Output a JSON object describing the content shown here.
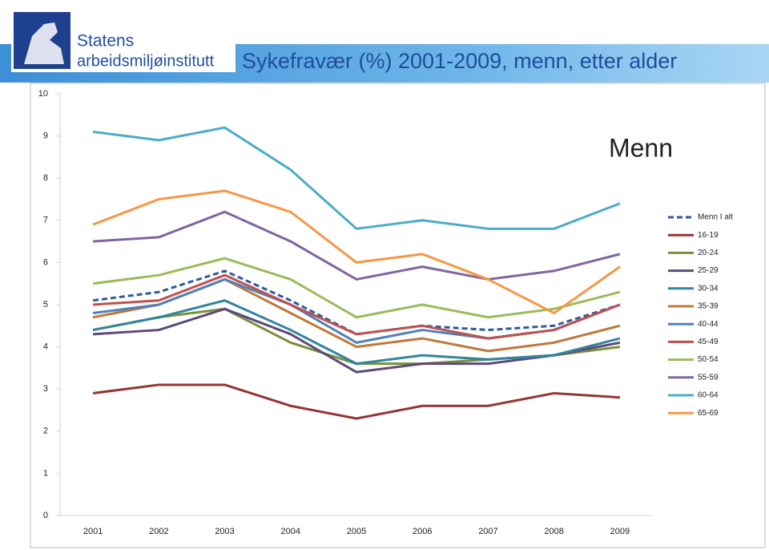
{
  "header": {
    "logo_lines": [
      "Statens",
      "arbeidsmiljøinstitutt"
    ]
  },
  "chart_data": {
    "type": "line",
    "title": "Sykefravær (%) 2001-2009, menn, etter alder",
    "annotation": "Menn",
    "categories": [
      "2001",
      "2002",
      "2003",
      "2004",
      "2005",
      "2006",
      "2007",
      "2008",
      "2009"
    ],
    "ylim": [
      0,
      10
    ],
    "yticks": [
      0,
      1,
      2,
      3,
      4,
      5,
      6,
      7,
      8,
      9,
      10
    ],
    "grid": false,
    "legend": "right",
    "series": [
      {
        "name": "Menn I alt",
        "color": "#2c5c9a",
        "dashed": true,
        "values": [
          5.1,
          5.3,
          5.8,
          5.1,
          4.3,
          4.5,
          4.4,
          4.5,
          5.0
        ]
      },
      {
        "name": "16-19",
        "color": "#943634",
        "values": [
          2.9,
          3.1,
          3.1,
          2.6,
          2.3,
          2.6,
          2.6,
          2.9,
          2.8
        ]
      },
      {
        "name": "20-24",
        "color": "#76923c",
        "values": [
          4.4,
          4.7,
          4.9,
          4.1,
          3.6,
          3.6,
          3.7,
          3.8,
          4.0
        ]
      },
      {
        "name": "25-29",
        "color": "#5f497a",
        "values": [
          4.3,
          4.4,
          4.9,
          4.3,
          3.4,
          3.6,
          3.6,
          3.8,
          4.1
        ]
      },
      {
        "name": "30-34",
        "color": "#31859c",
        "values": [
          4.4,
          4.7,
          5.1,
          4.4,
          3.6,
          3.8,
          3.7,
          3.8,
          4.2
        ]
      },
      {
        "name": "35-39",
        "color": "#c0773a",
        "values": [
          4.7,
          5.0,
          5.6,
          4.8,
          4.0,
          4.2,
          3.9,
          4.1,
          4.5
        ]
      },
      {
        "name": "40-44",
        "color": "#4f81bd",
        "values": [
          4.8,
          5.0,
          5.6,
          5.0,
          4.1,
          4.4,
          4.2,
          4.4,
          5.0
        ]
      },
      {
        "name": "45-49",
        "color": "#c0504d",
        "values": [
          5.0,
          5.1,
          5.7,
          5.0,
          4.3,
          4.5,
          4.2,
          4.4,
          5.0
        ]
      },
      {
        "name": "50-54",
        "color": "#9bbb59",
        "values": [
          5.5,
          5.7,
          6.1,
          5.6,
          4.7,
          5.0,
          4.7,
          4.9,
          5.3
        ]
      },
      {
        "name": "55-59",
        "color": "#8064a2",
        "values": [
          6.5,
          6.6,
          7.2,
          6.5,
          5.6,
          5.9,
          5.6,
          5.8,
          6.2
        ]
      },
      {
        "name": "60-64",
        "color": "#4bacc6",
        "values": [
          9.1,
          8.9,
          9.2,
          8.2,
          6.8,
          7.0,
          6.8,
          6.8,
          7.4
        ]
      },
      {
        "name": "65-69",
        "color": "#f79646",
        "values": [
          6.9,
          7.5,
          7.7,
          7.2,
          6.0,
          6.2,
          5.6,
          4.8,
          5.9
        ]
      }
    ]
  }
}
